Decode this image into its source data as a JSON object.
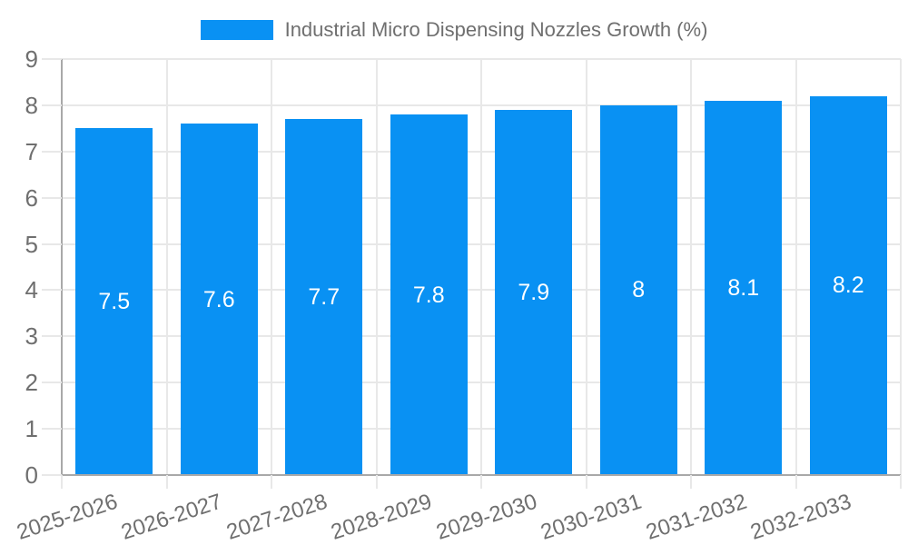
{
  "legend": {
    "label": "Industrial Micro Dispensing Nozzles Growth (%)"
  },
  "chart_data": {
    "type": "bar",
    "title": "Industrial Micro Dispensing Nozzles Growth (%)",
    "categories": [
      "2025-2026",
      "2026-2027",
      "2027-2028",
      "2028-2029",
      "2029-2030",
      "2030-2031",
      "2031-2032",
      "2032-2033"
    ],
    "values": [
      7.5,
      7.6,
      7.7,
      7.8,
      7.9,
      8,
      8.1,
      8.2
    ],
    "bar_labels": [
      "7.5",
      "7.6",
      "7.7",
      "7.8",
      "7.9",
      "8",
      "8.1",
      "8.2"
    ],
    "xlabel": "",
    "ylabel": "",
    "ylim": [
      0,
      9
    ],
    "yticks": [
      0,
      1,
      2,
      3,
      4,
      5,
      6,
      7,
      8,
      9
    ],
    "grid": true,
    "legend_position": "top",
    "bar_color": "#0991f3",
    "bar_label_color": "#ffffff"
  },
  "colors": {
    "background": "#ffffff",
    "bar": "#0991f3",
    "gridline": "#e8e8e8",
    "axis_line": "#a9a9a9",
    "text": "#6f6f6f",
    "bar_label": "#ffffff"
  }
}
